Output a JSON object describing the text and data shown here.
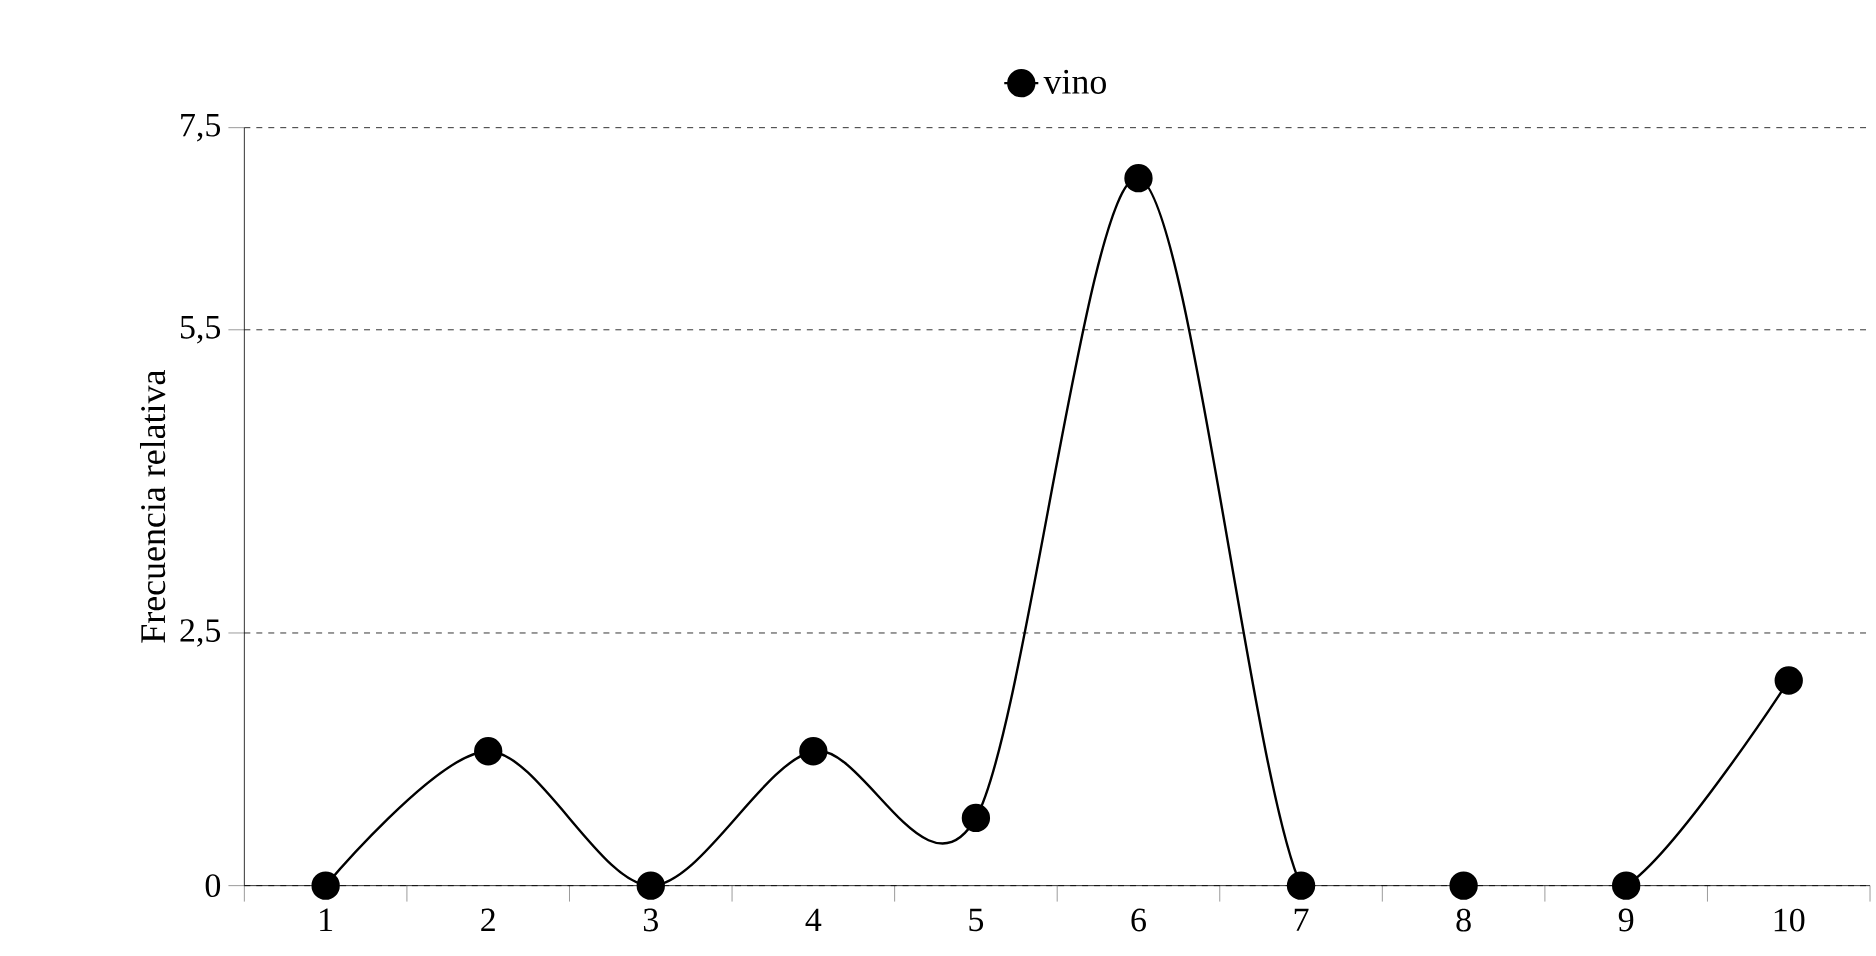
{
  "chart_data": {
    "type": "line",
    "ylabel": "Frecuencia relativa",
    "categories": [
      "1",
      "2",
      "3",
      "4",
      "5",
      "6",
      "7",
      "8",
      "9",
      "10"
    ],
    "series": [
      {
        "name": "vino",
        "color": "#000000",
        "values": [
          0,
          1.33,
          0,
          1.33,
          0.67,
          7,
          0,
          0,
          0,
          2.03
        ]
      }
    ],
    "ylim": [
      0,
      7.5
    ],
    "yticks": [
      0,
      {
        "value": 2.5,
        "label": "2,5"
      },
      {
        "value": 5.5,
        "label": "5,5"
      },
      {
        "value": 7.5,
        "label": "7,5"
      }
    ],
    "grid": "y",
    "legend": "top",
    "marker": "circle",
    "line_style": "solid"
  }
}
